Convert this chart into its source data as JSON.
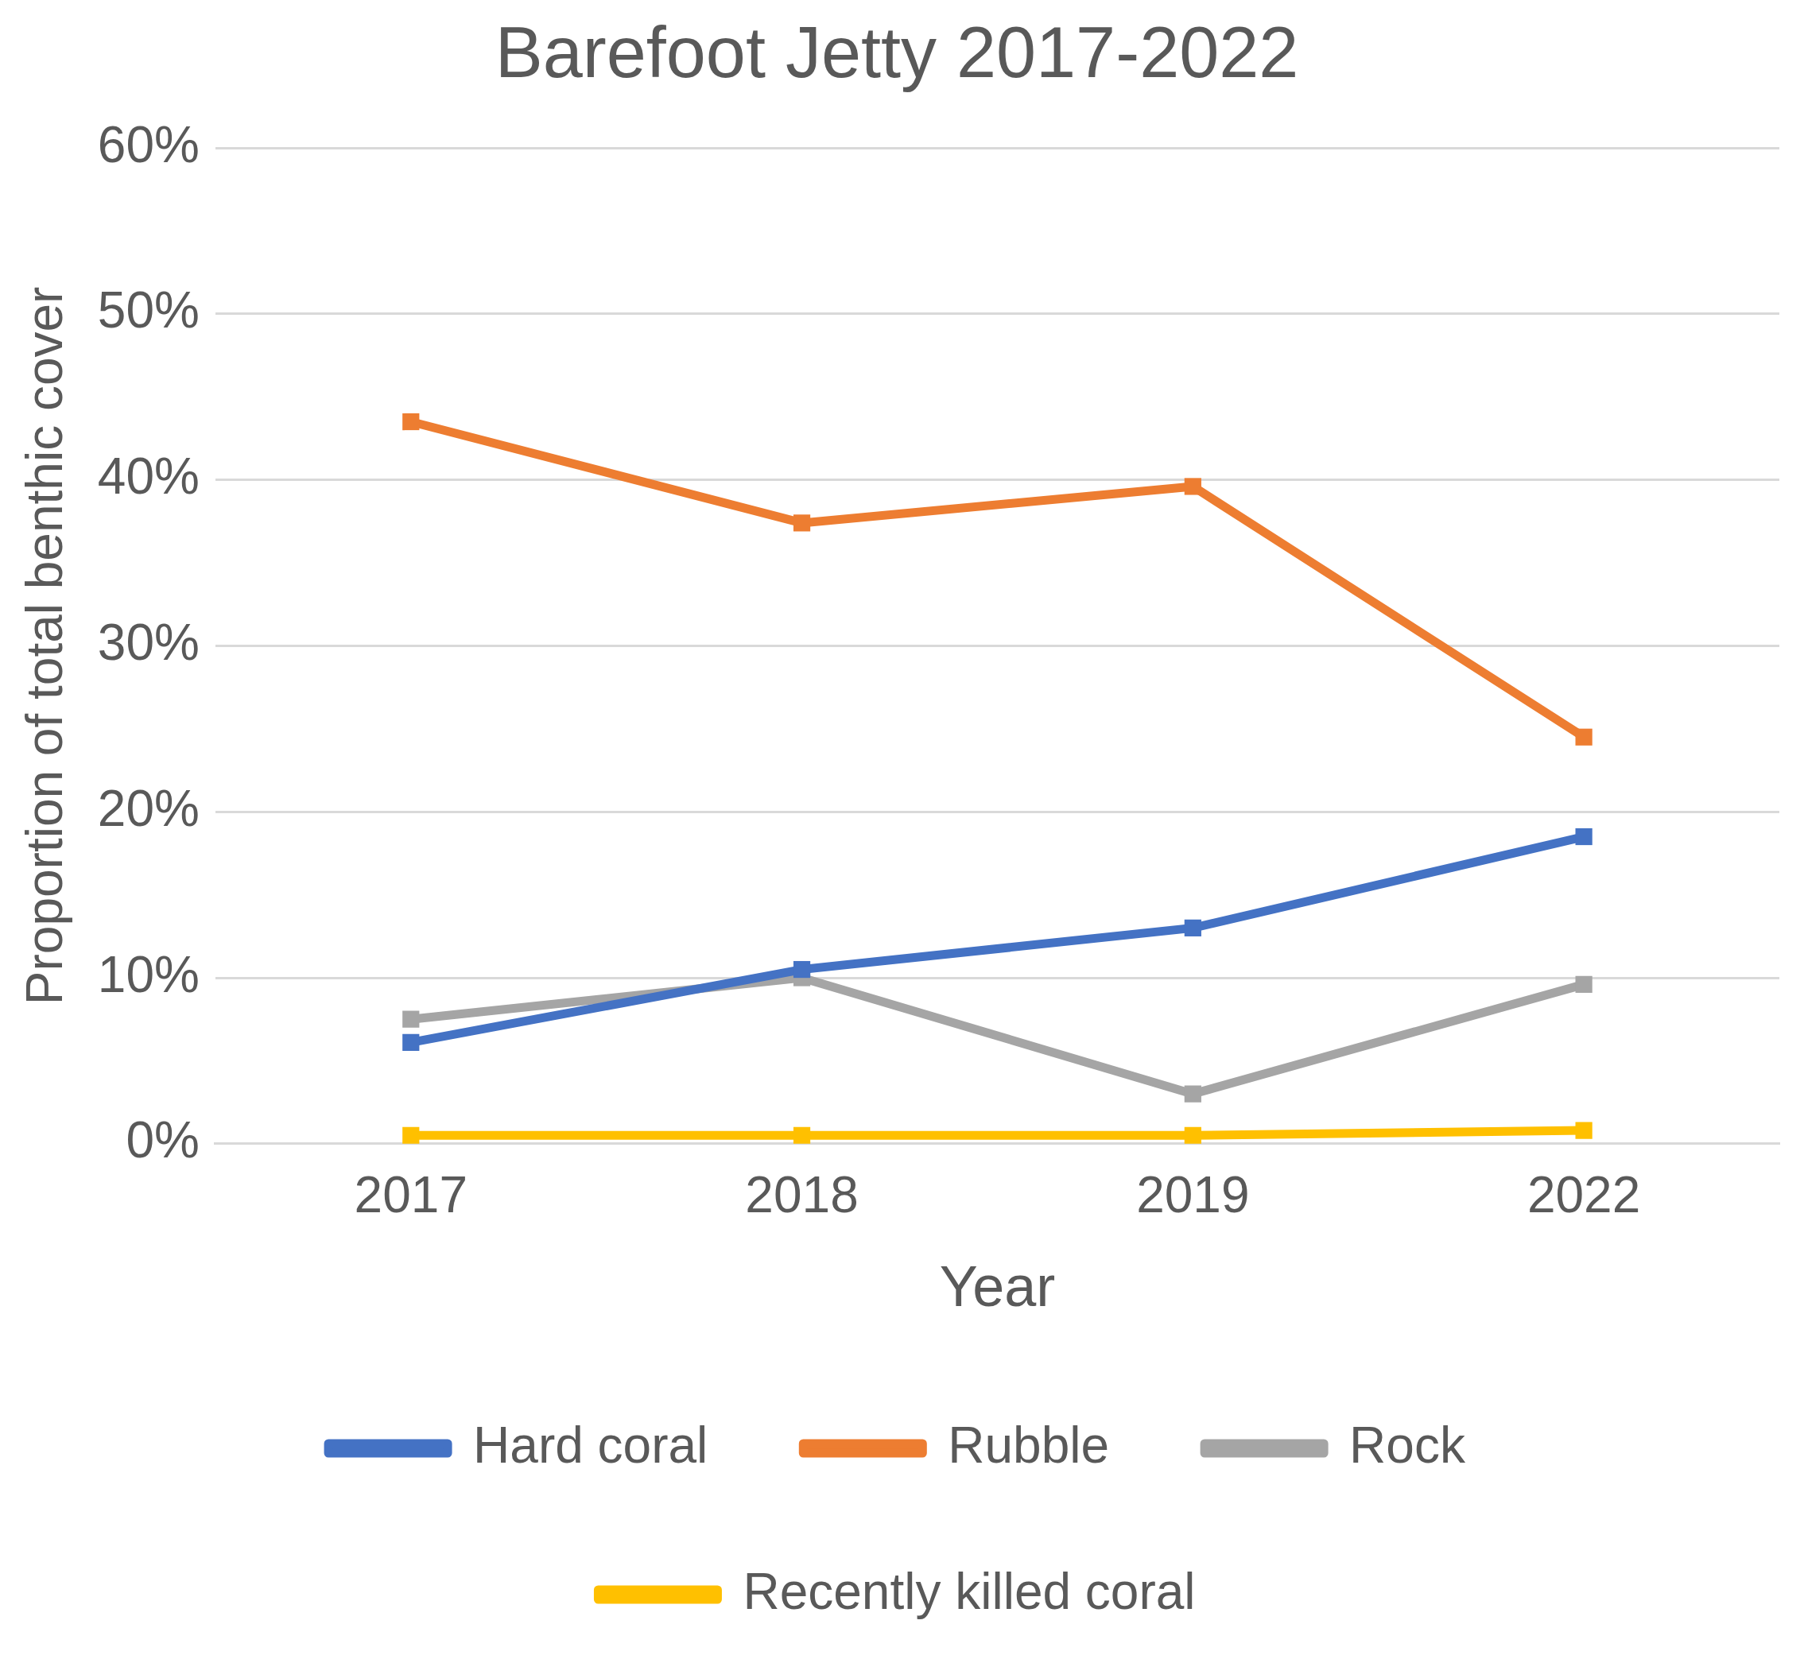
{
  "chart_data": {
    "type": "line",
    "title": "Barefoot Jetty 2017-2022",
    "xlabel": "Year",
    "ylabel": "Proportion of total benthic cover",
    "categories": [
      "2017",
      "2018",
      "2019",
      "2022"
    ],
    "series": [
      {
        "name": "Hard coral",
        "color": "#4472c4",
        "values": [
          6.1,
          10.5,
          13,
          18.5
        ]
      },
      {
        "name": "Rubble",
        "color": "#ed7d31",
        "values": [
          43.5,
          37.4,
          39.6,
          24.5
        ]
      },
      {
        "name": "Rock",
        "color": "#a5a5a5",
        "values": [
          7.5,
          10,
          3,
          9.6
        ]
      },
      {
        "name": "Recently killed coral",
        "color": "#ffc000",
        "values": [
          0.5,
          0.5,
          0.5,
          0.8
        ]
      }
    ],
    "ylim": [
      0,
      60
    ],
    "yticks": [
      {
        "value": 0,
        "label": "0%"
      },
      {
        "value": 10,
        "label": "10%"
      },
      {
        "value": 20,
        "label": "20%"
      },
      {
        "value": 30,
        "label": "30%"
      },
      {
        "value": 40,
        "label": "40%"
      },
      {
        "value": 50,
        "label": "50%"
      },
      {
        "value": 60,
        "label": "60%"
      }
    ],
    "grid": "y",
    "legend": "bottom",
    "marker": "square",
    "line_style": "solid"
  }
}
